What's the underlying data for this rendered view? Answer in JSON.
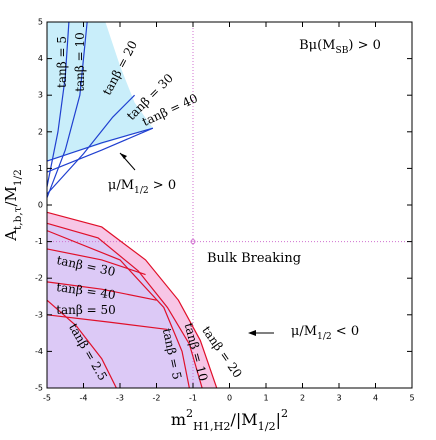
{
  "chart_data": {
    "type": "line",
    "xlabel": {
      "text": "m",
      "sup": "2",
      "sub": "H1,H2",
      "after": "/|M",
      "after_sub": "1/2",
      "end": "|",
      "end_sup": "2"
    },
    "ylabel": {
      "text": "A",
      "sub": "t,b,τ",
      "after": "/M",
      "after_sub": "1/2"
    },
    "xlim": [
      -5,
      5
    ],
    "ylim": [
      -5,
      5
    ],
    "xticks": [
      -5,
      -4,
      -3,
      -2,
      -1,
      0,
      1,
      2,
      3,
      4,
      5
    ],
    "yticks": [
      -5,
      -4,
      -3,
      -2,
      -1,
      0,
      1,
      2,
      3,
      4,
      5
    ],
    "reference_lines": {
      "x": -1,
      "y": -1,
      "color": "#d070d0"
    },
    "regions": [
      {
        "color": "#f7c6e6",
        "x": [
          -5,
          -3.5,
          -2.3,
          -1.4,
          -0.8,
          -0.35,
          -5
        ],
        "y": [
          -0.2,
          -0.6,
          -1.5,
          -2.6,
          -3.7,
          -5,
          -5
        ]
      },
      {
        "color": "#dcc9f6",
        "x": [
          -5,
          -3.6,
          -2.5,
          -1.7,
          -1.1,
          -0.75,
          -5
        ],
        "y": [
          -0.5,
          -0.9,
          -1.8,
          -2.8,
          -3.8,
          -5,
          -5
        ]
      },
      {
        "color": "#c9eefa",
        "x": [
          -5,
          -3.4,
          -3.0,
          -2.6,
          -2.1,
          -5
        ],
        "y": [
          5,
          5,
          3.8,
          2.8,
          2.1,
          1.2
        ]
      }
    ],
    "series": [
      {
        "color": "#2040d0",
        "x": [
          -5,
          -4.7,
          -4.5,
          -4.4
        ],
        "y": [
          0.5,
          2,
          3.5,
          5
        ]
      },
      {
        "color": "#2040d0",
        "x": [
          -5,
          -4.5,
          -4.1,
          -3.9
        ],
        "y": [
          0.2,
          1.5,
          3,
          5
        ]
      },
      {
        "color": "#2040d0",
        "x": [
          -5,
          -4,
          -3.2,
          -2.6
        ],
        "y": [
          0.3,
          1.4,
          2.4,
          3
        ]
      },
      {
        "color": "#2040d0",
        "x": [
          -5,
          -3.5,
          -2.1
        ],
        "y": [
          1.2,
          1.7,
          2.1
        ]
      },
      {
        "color": "#2040d0",
        "x": [
          -5,
          -3.5,
          -2.1
        ],
        "y": [
          0.9,
          1.5,
          2.1
        ]
      },
      {
        "color": "#e0102a",
        "x": [
          -5,
          -3.5,
          -2.3,
          -1.4,
          -0.8,
          -0.35
        ],
        "y": [
          -0.2,
          -0.6,
          -1.5,
          -2.6,
          -3.7,
          -5
        ]
      },
      {
        "color": "#e0102a",
        "x": [
          -5,
          -3.6,
          -2.5,
          -1.7,
          -1.1,
          -0.75
        ],
        "y": [
          -0.5,
          -0.9,
          -1.8,
          -2.8,
          -3.8,
          -5
        ]
      },
      {
        "color": "#e0102a",
        "x": [
          -5,
          -3,
          -1.8,
          -1.3,
          -1.1
        ],
        "y": [
          -0.7,
          -1.5,
          -2.8,
          -4,
          -5
        ]
      },
      {
        "color": "#e0102a",
        "x": [
          -5,
          -3.5,
          -2.3
        ],
        "y": [
          -1.2,
          -1.5,
          -1.9
        ]
      },
      {
        "color": "#e0102a",
        "x": [
          -5,
          -3.5,
          -2.0
        ],
        "y": [
          -2.1,
          -2.3,
          -2.6
        ]
      },
      {
        "color": "#e0102a",
        "x": [
          -5,
          -3.3,
          -1.7
        ],
        "y": [
          -3.0,
          -3.2,
          -3.4
        ]
      },
      {
        "color": "#e0102a",
        "x": [
          -5,
          -4.2,
          -3.5,
          -3.1
        ],
        "y": [
          -2.6,
          -3.3,
          -4.2,
          -5
        ]
      }
    ],
    "annotations": [
      {
        "text": "Bμ(M",
        "sub": "SB",
        "after": ")  >  0"
      },
      {
        "text": "Bulk Breaking"
      },
      {
        "text": "μ/M",
        "sub": "1/2",
        "after": " > 0"
      },
      {
        "text": "μ/M",
        "sub": "1/2",
        "after": " < 0"
      },
      {
        "text": "tanβ = 5"
      },
      {
        "text": "tanβ = 10"
      },
      {
        "text": "tanβ = 20"
      },
      {
        "text": "tanβ = 30"
      },
      {
        "text": "tanβ = 40"
      },
      {
        "text": "tanβ = 30"
      },
      {
        "text": "tanβ = 40"
      },
      {
        "text": "tanβ = 50"
      },
      {
        "text": "tanβ = 2.5"
      },
      {
        "text": "tanβ = 5"
      },
      {
        "text": "tanβ = 10"
      },
      {
        "text": "tanβ = 20"
      }
    ]
  }
}
